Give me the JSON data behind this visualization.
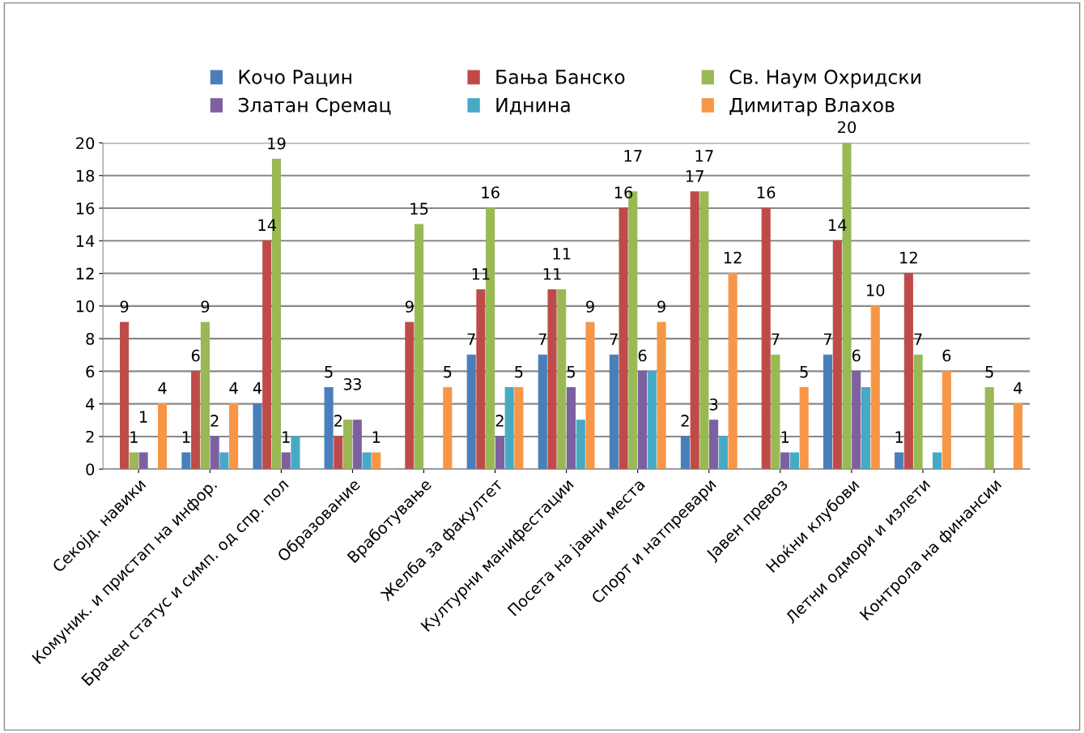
{
  "chart_data": {
    "type": "bar",
    "categories": [
      "Секојд. навики",
      "Комуник. и пристап на инфор.",
      "Брачен статус и симп. од спр. пол",
      "Образование",
      "Вработување",
      "Желба за факултет",
      "Културни манифестации",
      "Посета на јавни места",
      "Спорт и натпревари",
      "Јавен превоз",
      "Ноќни клубови",
      "Летни одмори и излети",
      "Контрола на финансии"
    ],
    "series": [
      {
        "name": "Кочо Рацин",
        "color": "#4a7ebb",
        "values": [
          0,
          1,
          4,
          5,
          0,
          7,
          7,
          7,
          2,
          0,
          7,
          1,
          0
        ],
        "value_labels": [
          null,
          "1",
          "4",
          "5",
          null,
          "7",
          "7",
          "7",
          "2",
          null,
          "7",
          "1",
          null
        ]
      },
      {
        "name": "Бања Банско",
        "color": "#be4b48",
        "values": [
          9,
          6,
          14,
          2,
          9,
          11,
          11,
          16,
          17,
          16,
          14,
          12,
          0
        ],
        "value_labels": [
          "9",
          "6",
          "14",
          "2",
          "9",
          "11",
          "11",
          "16",
          "17",
          "16",
          "14",
          "12",
          null
        ]
      },
      {
        "name": "Св. Наум Охридски",
        "color": "#98b954",
        "values": [
          1,
          9,
          19,
          3,
          15,
          16,
          11,
          17,
          17,
          7,
          20,
          7,
          5
        ],
        "value_labels": [
          "1",
          "9",
          "19",
          "3",
          "15",
          "16",
          "11",
          "17",
          "17",
          "7",
          "20",
          "7",
          "5"
        ]
      },
      {
        "name": "Златан Сремац",
        "color": "#7d60a0",
        "values": [
          1,
          2,
          1,
          3,
          0,
          2,
          5,
          6,
          3,
          1,
          6,
          0,
          0
        ],
        "value_labels": [
          "1",
          "2",
          "1",
          "3",
          null,
          "2",
          "5",
          "6",
          "3",
          "1",
          "6",
          null,
          null
        ]
      },
      {
        "name": "Иднина",
        "color": "#46aac5",
        "values": [
          0,
          1,
          2,
          1,
          0,
          5,
          3,
          6,
          2,
          1,
          5,
          1,
          0
        ],
        "value_labels": [
          null,
          null,
          null,
          null,
          null,
          null,
          null,
          null,
          null,
          null,
          null,
          null,
          null
        ]
      },
      {
        "name": "Димитар Влахов",
        "color": "#f79646",
        "values": [
          4,
          4,
          0,
          1,
          5,
          5,
          9,
          9,
          12,
          5,
          10,
          6,
          4
        ],
        "value_labels": [
          "4",
          "4",
          null,
          "1",
          "5",
          "5",
          "9",
          "9",
          "12",
          "5",
          "10",
          "6",
          "4"
        ]
      }
    ],
    "ylim": [
      0,
      20
    ],
    "yticks": [
      0,
      2,
      4,
      6,
      8,
      10,
      12,
      14,
      16,
      18,
      20
    ],
    "grid": "y",
    "legend": "top"
  }
}
